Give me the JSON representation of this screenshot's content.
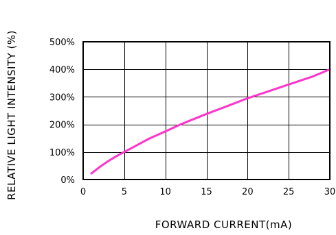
{
  "chart_data": {
    "type": "line",
    "title": "",
    "xlabel": "FORWARD CURRENT(mA)",
    "ylabel": "RELATIVE LIGHT INTENSITY (%)",
    "xlim": [
      0,
      30
    ],
    "ylim": [
      0,
      500
    ],
    "x_ticks": [
      0,
      5,
      10,
      15,
      20,
      25,
      30
    ],
    "x_tick_labels": [
      "0",
      "5",
      "10",
      "15",
      "20",
      "25",
      "30"
    ],
    "y_ticks": [
      0,
      100,
      200,
      300,
      400,
      500
    ],
    "y_tick_labels": [
      "0%",
      "100%",
      "200%",
      "300%",
      "400%",
      "500%"
    ],
    "grid": true,
    "legend": "none",
    "series": [
      {
        "color": "#ff33cc",
        "x": [
          1,
          2,
          3,
          4,
          5,
          6,
          8,
          10,
          12,
          15,
          18,
          20,
          22,
          25,
          28,
          30
        ],
        "y": [
          22,
          45,
          66,
          84,
          100,
          116,
          148,
          175,
          202,
          238,
          272,
          295,
          315,
          345,
          375,
          400
        ]
      }
    ]
  }
}
